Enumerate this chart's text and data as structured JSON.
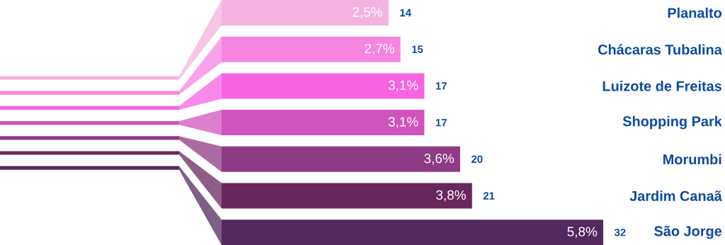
{
  "chart_data": {
    "type": "bar",
    "orientation": "horizontal",
    "categories": [
      "Planalto",
      "Chácaras Tubalina",
      "Luizote de Freitas",
      "Shopping Park",
      "Morumbi",
      "Jardim Canaã",
      "São Jorge"
    ],
    "values": [
      14,
      15,
      17,
      17,
      20,
      21,
      32
    ],
    "value_labels": [
      "14",
      "15",
      "17",
      "17",
      "20",
      "21",
      "32"
    ],
    "annotations": [
      "2,5%",
      "2,7%",
      "3,1%",
      "3,1%",
      "3,6%",
      "3,8%",
      "5,8%"
    ],
    "colors": [
      "#f4b3df",
      "#f585e0",
      "#f763e1",
      "#d153bd",
      "#8e3a84",
      "#68285c",
      "#532a5e"
    ]
  }
}
